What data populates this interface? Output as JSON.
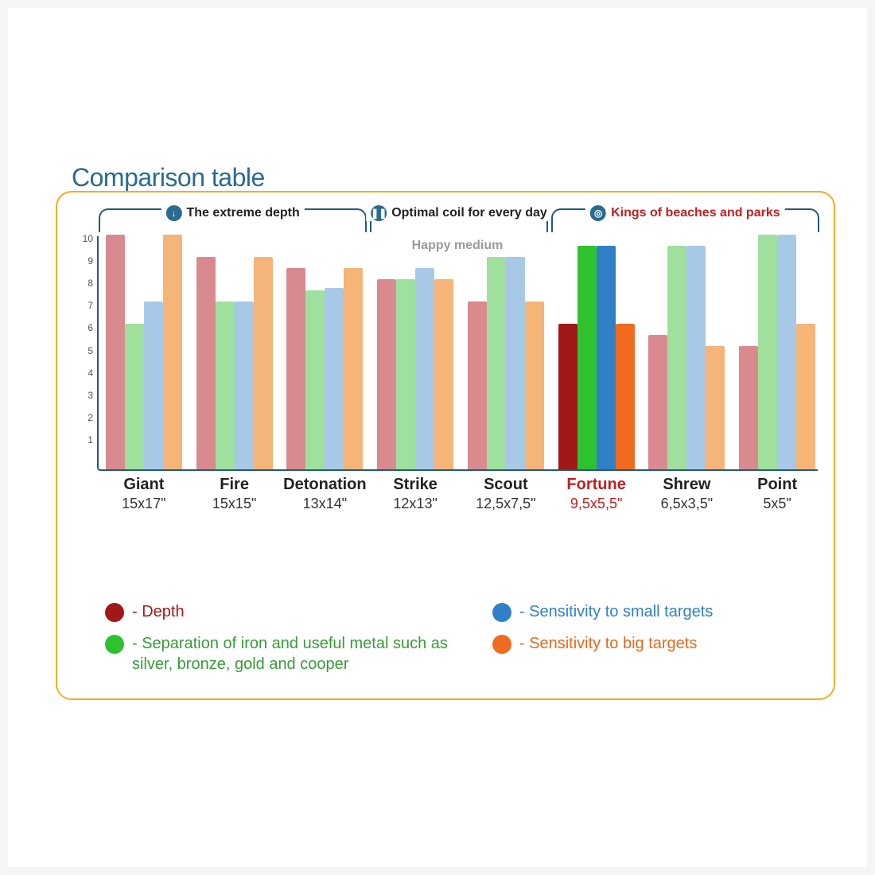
{
  "title": "Comparison table",
  "happy_medium_label": "Happy medium",
  "chart": {
    "type": "bar",
    "ymax": 10.5,
    "yticks": [
      1,
      2,
      3,
      4,
      5,
      6,
      7,
      8,
      9,
      10
    ],
    "groups": [
      {
        "label": "The extreme depth",
        "icon_color": "#2a6b8f",
        "label_color": "dark",
        "icon_glyph": "↓",
        "start": 0,
        "end": 3
      },
      {
        "label": "Optimal coil for every day",
        "icon_color": "#2a6b8f",
        "label_color": "dark",
        "icon_glyph": "❚❚",
        "start": 3,
        "end": 5
      },
      {
        "label": "Kings of beaches and parks",
        "icon_color": "#2a6b8f",
        "label_color": "red",
        "icon_glyph": "◎",
        "start": 5,
        "end": 8
      }
    ],
    "series_colors_muted": {
      "depth": "#d98a8f",
      "separation": "#9fe09f",
      "small": "#a8c8e8",
      "big": "#f5b478"
    },
    "series_colors_bold": {
      "depth": "#a01818",
      "separation": "#2ec22e",
      "small": "#3080c8",
      "big": "#f06a20"
    },
    "categories": [
      {
        "name": "Giant",
        "size": "15x17\"",
        "highlight": false,
        "bold": false,
        "values": {
          "depth": 10.5,
          "separation": 6.5,
          "small": 7.5,
          "big": 10.5
        }
      },
      {
        "name": "Fire",
        "size": "15x15\"",
        "highlight": false,
        "bold": false,
        "values": {
          "depth": 9.5,
          "separation": 7.5,
          "small": 7.5,
          "big": 9.5
        }
      },
      {
        "name": "Detonation",
        "size": "13x14\"",
        "highlight": false,
        "bold": false,
        "values": {
          "depth": 9.0,
          "separation": 8.0,
          "small": 8.1,
          "big": 9.0
        }
      },
      {
        "name": "Strike",
        "size": "12x13\"",
        "highlight": false,
        "bold": false,
        "values": {
          "depth": 8.5,
          "separation": 8.5,
          "small": 9.0,
          "big": 8.5
        }
      },
      {
        "name": "Scout",
        "size": "12,5x7,5\"",
        "highlight": false,
        "bold": false,
        "values": {
          "depth": 7.5,
          "separation": 9.5,
          "small": 9.5,
          "big": 7.5
        }
      },
      {
        "name": "Fortune",
        "size": "9,5x5,5\"",
        "highlight": true,
        "bold": true,
        "values": {
          "depth": 6.5,
          "separation": 10.0,
          "small": 10.0,
          "big": 6.5
        }
      },
      {
        "name": "Shrew",
        "size": "6,5x3,5\"",
        "highlight": false,
        "bold": false,
        "values": {
          "depth": 6.0,
          "separation": 10.0,
          "small": 10.0,
          "big": 5.5
        }
      },
      {
        "name": "Point",
        "size": "5x5\"",
        "highlight": false,
        "bold": false,
        "values": {
          "depth": 5.5,
          "separation": 10.5,
          "small": 10.5,
          "big": 6.5
        }
      }
    ]
  },
  "legend": [
    {
      "key": "depth",
      "color": "#a01818",
      "text_color": "#a01818",
      "label": "- Depth"
    },
    {
      "key": "small",
      "color": "#3080c8",
      "text_color": "#3080c8",
      "label": "- Sensitivity to small targets"
    },
    {
      "key": "separation",
      "color": "#2ec22e",
      "text_color": "#3a9a3a",
      "label": "- Separation of iron and useful metal such as silver, bronze, gold and cooper"
    },
    {
      "key": "big",
      "color": "#f06a20",
      "text_color": "#e06a20",
      "label": "- Sensitivity to big targets"
    }
  ]
}
